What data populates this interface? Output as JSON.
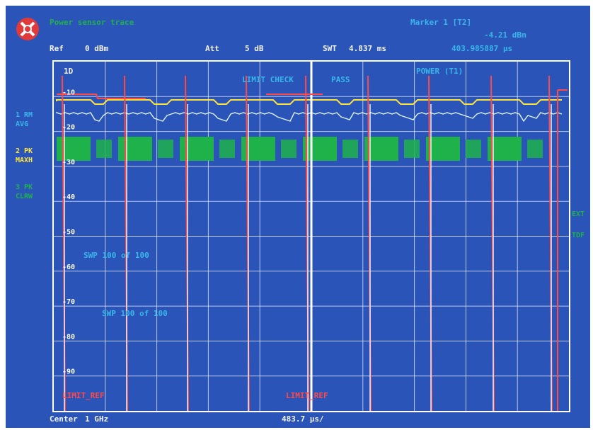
{
  "header": {
    "title": "Power sensor trace",
    "marker_label": "Marker 1 [T2]",
    "marker_level": "-4.21 dBm",
    "marker_time": "403.985887 µs"
  },
  "settings": {
    "ref_label": "Ref",
    "ref_value": "0 dBm",
    "att_label": "Att",
    "att_value": "5 dB",
    "swt_label": "SWT",
    "swt_value": "4.837 ms"
  },
  "traces_panel": {
    "t1": "1 RM",
    "t1_mode": "AVG",
    "t2": "2 PK",
    "t2_mode": "MAXH",
    "t3": "3 PK",
    "t3_mode": "CLRW"
  },
  "plot": {
    "top_label": "1D",
    "limit_check": "LIMIT CHECK",
    "limit_result": "PASS",
    "power_label": "POWER (T1)",
    "y_labels": [
      "-10",
      "-20",
      "-30",
      "-40",
      "-50",
      "-60",
      "-70",
      "-80",
      "-90"
    ],
    "swp_1": "SWP  100 of  100",
    "swp_2": "SWP  100 of  100",
    "limit_left": "LIMIT_REF",
    "limit_mid": "LIMIT_REF",
    "right_a": "EXT",
    "right_b": "TDF"
  },
  "footer": {
    "center_label": "Center",
    "center_value": "1 GHz",
    "span": "483.7 µs/"
  },
  "colors": {
    "background": "#2a54b8",
    "grid": "#e8eef8",
    "trace_avg": "#dff4ff",
    "trace_maxh": "#ffe23a",
    "burst": "#1fb24a",
    "limit": "#ff4a4a"
  }
}
